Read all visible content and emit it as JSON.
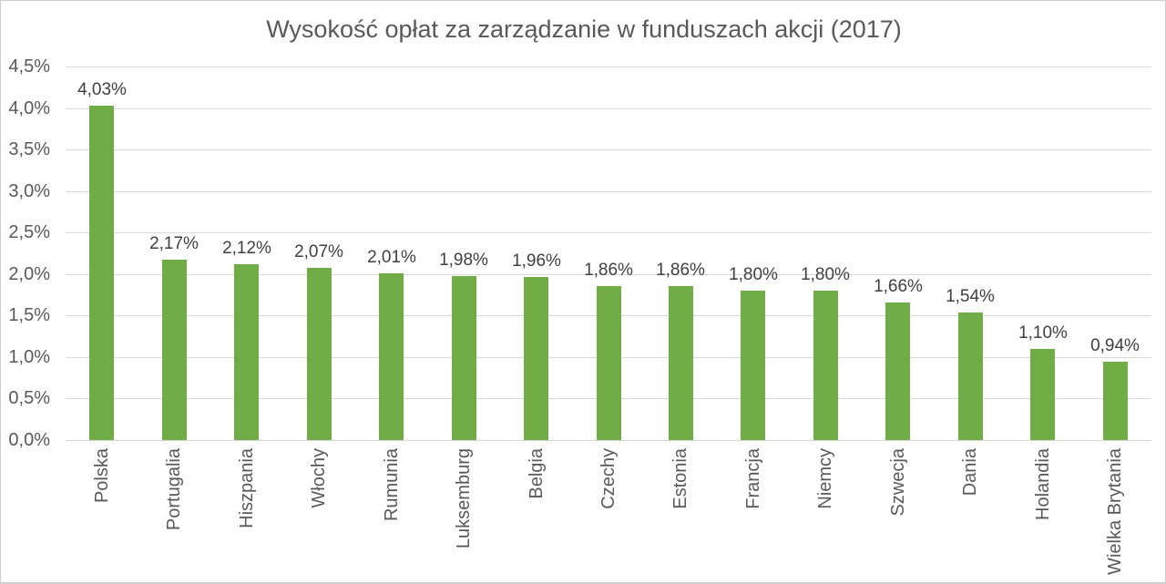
{
  "chart_data": {
    "type": "bar",
    "title": "Wysokość opłat za zarządzanie w funduszach akcji (2017)",
    "categories": [
      "Polska",
      "Portugalia",
      "Hiszpania",
      "Włochy",
      "Rumunia",
      "Luksemburg",
      "Belgia",
      "Czechy",
      "Estonia",
      "Francja",
      "Niemcy",
      "Szwecja",
      "Dania",
      "Holandia",
      "Wielka Brytania"
    ],
    "values": [
      4.03,
      2.17,
      2.12,
      2.07,
      2.01,
      1.98,
      1.96,
      1.86,
      1.86,
      1.8,
      1.8,
      1.66,
      1.54,
      1.1,
      0.94
    ],
    "value_labels": [
      "4,03%",
      "2,17%",
      "2,12%",
      "2,07%",
      "2,01%",
      "1,98%",
      "1,96%",
      "1,86%",
      "1,86%",
      "1,80%",
      "1,80%",
      "1,66%",
      "1,54%",
      "1,10%",
      "0,94%"
    ],
    "xlabel": "",
    "ylabel": "",
    "ylim": [
      0,
      4.5
    ],
    "ytick_step": 0.5,
    "ytick_labels": [
      "0,0%",
      "0,5%",
      "1,0%",
      "1,5%",
      "2,0%",
      "2,5%",
      "3,0%",
      "3,5%",
      "4,0%",
      "4,5%"
    ],
    "grid": true,
    "legend": false,
    "bar_color": "#70AD47",
    "grid_color": "#D9D9D9",
    "axis_line_color": "#D6D6D6",
    "title_color": "#595959",
    "tick_label_color": "#595959",
    "value_label_color": "#404040",
    "background": "#FFFFFF"
  }
}
